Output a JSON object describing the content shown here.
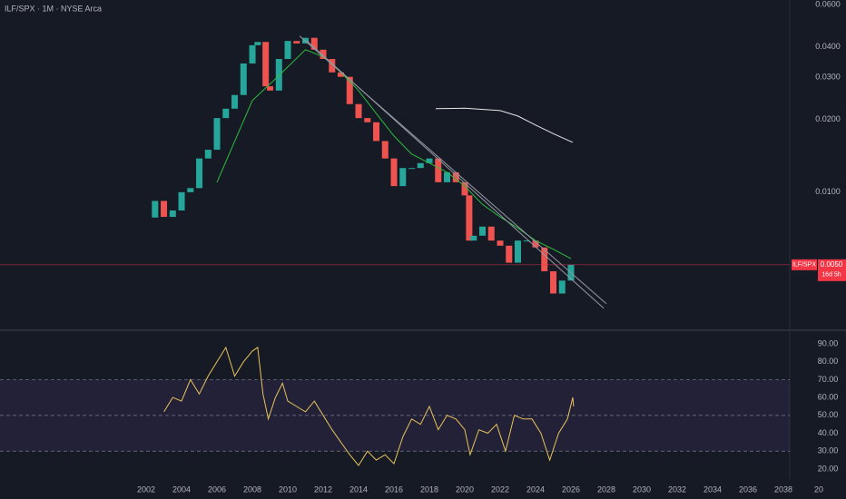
{
  "chart_data": [
    {
      "type": "candlestick",
      "title": "ILF/SPX · 1M · NYSE Arca",
      "log": true,
      "grid": false,
      "up_color": "#26a69a",
      "down_color": "#ef5350",
      "xlim": [
        1993.74,
        2038.36
      ],
      "ylim": [
        0.00277,
        0.0627
      ],
      "yticks": [
        {
          "value": 0.06,
          "label": "0.0600"
        },
        {
          "value": 0.04,
          "label": "0.0400"
        },
        {
          "value": 0.03,
          "label": "0.0300"
        },
        {
          "value": 0.02,
          "label": "0.0200"
        },
        {
          "value": 0.01,
          "label": "0.0100"
        }
      ],
      "x": [
        2002.0,
        2002.5,
        2003.0,
        2003.5,
        2004.0,
        2004.5,
        2005.0,
        2005.5,
        2006.0,
        2006.5,
        2007.0,
        2007.5,
        2008.0,
        2008.3,
        2008.75,
        2009.0,
        2009.5,
        2010.0,
        2010.5,
        2011.0,
        2011.5,
        2012.0,
        2012.5,
        2013.0,
        2013.5,
        2014.0,
        2014.5,
        2015.0,
        2015.5,
        2016.0,
        2016.5,
        2017.0,
        2017.5,
        2018.0,
        2018.5,
        2019.0,
        2019.5,
        2020.0,
        2020.25,
        2020.5,
        2021.0,
        2021.5,
        2022.0,
        2022.5,
        2023.0,
        2023.5,
        2024.0,
        2024.5,
        2025.0,
        2025.5,
        2026.0
      ],
      "close": [
        0.00785,
        0.0092,
        0.0079,
        0.0084,
        0.01,
        0.0104,
        0.0138,
        0.015,
        0.0203,
        0.0222,
        0.0253,
        0.0342,
        0.0407,
        0.042,
        0.0275,
        0.0264,
        0.0357,
        0.0424,
        0.0414,
        0.0437,
        0.039,
        0.0357,
        0.0314,
        0.0301,
        0.0232,
        0.0203,
        0.0195,
        0.0163,
        0.0138,
        0.0106,
        0.0126,
        0.0126,
        0.0132,
        0.0138,
        0.011,
        0.0121,
        0.011,
        0.0097,
        0.0063,
        0.0066,
        0.0072,
        0.0063,
        0.006,
        0.0051,
        0.0063,
        0.0063,
        0.0059,
        0.0047,
        0.0038,
        0.0043,
        0.005
      ],
      "lines": [
        {
          "color": "#2ebd3f",
          "x": [
            2006,
            2008,
            2009.5,
            2011,
            2012,
            2013,
            2014,
            2015,
            2016,
            2017,
            2018,
            2019,
            2020,
            2021,
            2022,
            2023,
            2024,
            2025,
            2026
          ],
          "values": [
            0.011,
            0.024,
            0.0305,
            0.039,
            0.0365,
            0.0314,
            0.0264,
            0.0212,
            0.0171,
            0.0144,
            0.0132,
            0.0121,
            0.0106,
            0.0089,
            0.0079,
            0.0071,
            0.0063,
            0.0058,
            0.0053
          ]
        },
        {
          "color": "#e6e6e6",
          "x": [
            2018.36,
            2020,
            2022,
            2023,
            2024,
            2025,
            2026.1
          ],
          "values": [
            0.0222,
            0.0223,
            0.0218,
            0.0207,
            0.019,
            0.0175,
            0.0161
          ]
        },
        {
          "color": "#9598a1",
          "x": [
            2010.67,
            2028.0
          ],
          "values": [
            0.0444,
            0.00345
          ]
        },
        {
          "color": "#9598a1",
          "x": [
            2011.08,
            2027.85
          ],
          "values": [
            0.0424,
            0.0033
          ]
        }
      ],
      "last": {
        "symbol": "ILF/SPX",
        "price": {
          "value": 0.005,
          "label": "0.0050"
        },
        "countdown": "16d 5h",
        "color": "#f23645"
      }
    },
    {
      "type": "line",
      "color": "#e8c35a",
      "xlim": [
        1993.74,
        2038.36
      ],
      "ylim": [
        14.4,
        96.6
      ],
      "yticks": [
        {
          "value": 90,
          "label": "90.00"
        },
        {
          "value": 80,
          "label": "80.00"
        },
        {
          "value": 70,
          "label": "70.00"
        },
        {
          "value": 60,
          "label": "60.00"
        },
        {
          "value": 50,
          "label": "50.00"
        },
        {
          "value": 40,
          "label": "40.00"
        },
        {
          "value": 30,
          "label": "30.00"
        },
        {
          "value": 20,
          "label": "20.00"
        }
      ],
      "band": [
        30,
        70
      ],
      "levels": [
        70,
        50,
        30
      ],
      "xticks": [
        2002,
        2004,
        2006,
        2008,
        2010,
        2012,
        2014,
        2016,
        2018,
        2020,
        2022,
        2024,
        2026,
        2028,
        2030,
        2032,
        2034,
        2036,
        2038,
        {
          "value": 2040,
          "label": "20"
        }
      ],
      "x": [
        2003.0,
        2003.5,
        2004.0,
        2004.5,
        2005.0,
        2005.5,
        2006.0,
        2006.5,
        2007.0,
        2007.5,
        2008.0,
        2008.3,
        2008.6,
        2008.9,
        2009.3,
        2009.7,
        2010.0,
        2010.5,
        2011.0,
        2011.5,
        2012.0,
        2012.5,
        2013.0,
        2013.5,
        2014.0,
        2014.5,
        2015.0,
        2015.5,
        2016.0,
        2016.5,
        2017.0,
        2017.5,
        2018.0,
        2018.5,
        2019.0,
        2019.5,
        2020.0,
        2020.3,
        2020.8,
        2021.3,
        2021.8,
        2022.3,
        2022.8,
        2023.3,
        2023.8,
        2024.3,
        2024.8,
        2025.3,
        2025.8,
        2026.1,
        2026.15
      ],
      "values": [
        52,
        60,
        58,
        70,
        62,
        72,
        80,
        88,
        72,
        80,
        86,
        88,
        62,
        48,
        60,
        68,
        58,
        55,
        52,
        58,
        50,
        42,
        35,
        28,
        22,
        30,
        25,
        28,
        23,
        38,
        48,
        45,
        55,
        42,
        50,
        48,
        42,
        28,
        42,
        40,
        45,
        30,
        50,
        48,
        48,
        40,
        25,
        40,
        48,
        60,
        55
      ]
    }
  ]
}
